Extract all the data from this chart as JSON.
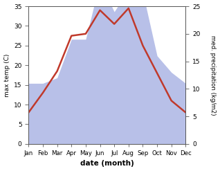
{
  "months": [
    "Jan",
    "Feb",
    "Mar",
    "Apr",
    "May",
    "Jun",
    "Jul",
    "Aug",
    "Sep",
    "Oct",
    "Nov",
    "Dec"
  ],
  "temp": [
    8,
    13,
    18.5,
    27.5,
    28,
    34,
    30.5,
    34.5,
    25,
    18,
    11,
    8
  ],
  "precip": [
    11,
    11,
    12,
    19,
    19,
    29.5,
    24,
    28,
    27.5,
    16,
    13,
    11
  ],
  "temp_ylim": [
    0,
    35
  ],
  "precip_ylim": [
    0,
    25
  ],
  "temp_color": "#c0392b",
  "fill_color": "#b8c0e8",
  "fill_alpha": 1.0,
  "xlabel": "date (month)",
  "ylabel_left": "max temp (C)",
  "ylabel_right": "med. precipitation (kg/m2)",
  "bg_color": "#ffffff",
  "left_yticks": [
    0,
    5,
    10,
    15,
    20,
    25,
    30,
    35
  ],
  "right_yticks": [
    0,
    5,
    10,
    15,
    20,
    25
  ],
  "temp_linewidth": 1.8
}
